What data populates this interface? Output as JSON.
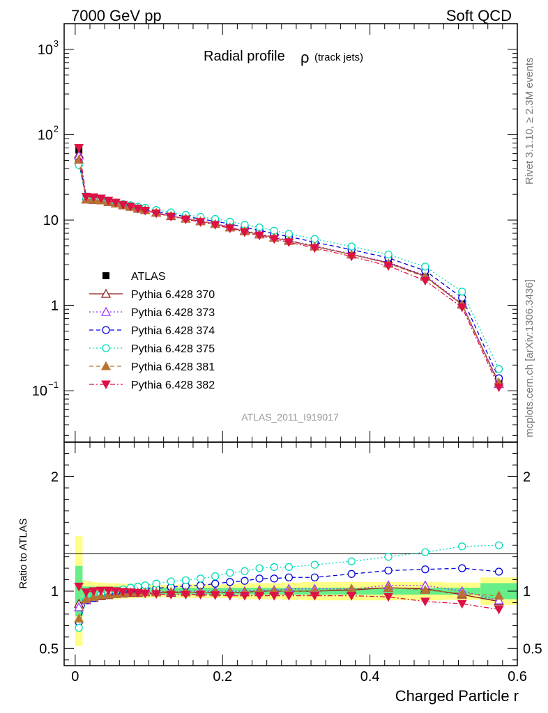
{
  "header": {
    "left": "7000 GeV pp",
    "right": "Soft QCD"
  },
  "side_labels": {
    "rivet": "Rivet 3.1.10, ≥ 2.3M events",
    "mcplots": "mcplots.cern.ch [arXiv:1306.3436]"
  },
  "chart_data": [
    {
      "type": "line",
      "title": "Radial profile",
      "title_symbol": "ρ",
      "title_suffix": "(track jets)",
      "watermark": "ATLAS_2011_I919017",
      "yscale": "log",
      "xlim": [
        -0.015,
        0.6
      ],
      "ylim": [
        0.025,
        2000
      ],
      "ytick_labels": [
        "10^-1",
        "1",
        "10",
        "10^2",
        "10^3"
      ],
      "xtick_labels": [
        "0",
        "0.2",
        "0.4",
        "0.6"
      ],
      "legend_position": "middle-left",
      "x": [
        0.005,
        0.015,
        0.025,
        0.035,
        0.045,
        0.055,
        0.065,
        0.075,
        0.085,
        0.095,
        0.11,
        0.13,
        0.15,
        0.17,
        0.19,
        0.21,
        0.23,
        0.25,
        0.27,
        0.29,
        0.325,
        0.375,
        0.425,
        0.475,
        0.525,
        0.575
      ],
      "series": [
        {
          "name": "ATLAS",
          "color": "#000000",
          "marker": "square-filled",
          "line": "none",
          "values": [
            66,
            19,
            18.5,
            17.8,
            16.8,
            16,
            15.2,
            14.5,
            13.8,
            13.2,
            12.3,
            11.3,
            10.5,
            9.8,
            9.1,
            8.3,
            7.5,
            6.8,
            6.2,
            5.7,
            4.9,
            3.9,
            3.05,
            2.15,
            1.05,
            0.13
          ]
        },
        {
          "name": "Pythia 6.428 370",
          "color": "#8b1a1a",
          "marker": "triangle-open",
          "line": "solid",
          "values": [
            59,
            17.4,
            17.2,
            17,
            16.2,
            15.6,
            14.9,
            14.3,
            13.6,
            13.1,
            12.2,
            11.1,
            10.4,
            9.7,
            9.0,
            8.2,
            7.4,
            6.8,
            6.2,
            5.7,
            4.9,
            3.95,
            3.15,
            2.2,
            1.02,
            0.12
          ]
        },
        {
          "name": "Pythia 6.428 373",
          "color": "#9b30ff",
          "marker": "triangle-open",
          "line": "dotted",
          "values": [
            57,
            17.5,
            17.3,
            17.1,
            16.3,
            15.7,
            15.0,
            14.4,
            13.7,
            13.2,
            12.3,
            11.2,
            10.5,
            9.8,
            9.1,
            8.3,
            7.5,
            6.9,
            6.3,
            5.8,
            5.0,
            4.0,
            3.2,
            2.25,
            1.05,
            0.12
          ]
        },
        {
          "name": "Pythia 6.428 374",
          "color": "#0000dd",
          "marker": "circle-open",
          "line": "dashed",
          "values": [
            48,
            17.6,
            17.4,
            17.1,
            16.4,
            15.8,
            15.2,
            14.6,
            14.0,
            13.5,
            12.6,
            11.7,
            11.0,
            10.3,
            9.7,
            9.0,
            8.2,
            7.6,
            6.9,
            6.4,
            5.5,
            4.5,
            3.6,
            2.55,
            1.23,
            0.14
          ]
        },
        {
          "name": "Pythia 6.428 375",
          "color": "#00ddbb",
          "marker": "circle-open",
          "line": "dotted",
          "values": [
            44,
            17.7,
            17.5,
            17.2,
            16.6,
            16.0,
            15.4,
            14.9,
            14.3,
            13.9,
            13.1,
            12.3,
            11.5,
            10.9,
            10.3,
            9.6,
            8.8,
            8.2,
            7.5,
            6.9,
            6.0,
            4.9,
            3.95,
            2.85,
            1.45,
            0.18
          ]
        },
        {
          "name": "Pythia 6.428 381",
          "color": "#b87333",
          "marker": "triangle-filled",
          "line": "dashed",
          "values": [
            51,
            17.5,
            17.3,
            17.0,
            16.3,
            15.6,
            15.0,
            14.3,
            13.7,
            13.1,
            12.2,
            11.2,
            10.4,
            9.7,
            9.0,
            8.2,
            7.4,
            6.8,
            6.2,
            5.7,
            4.9,
            3.95,
            3.1,
            2.15,
            1.02,
            0.125
          ]
        },
        {
          "name": "Pythia 6.428 382",
          "color": "#dd1144",
          "marker": "triangle-down-filled",
          "line": "dashdot",
          "values": [
            70,
            18.8,
            18.5,
            17.9,
            16.9,
            16.0,
            15.1,
            14.4,
            13.6,
            12.9,
            12.0,
            11.0,
            10.2,
            9.5,
            8.8,
            8.0,
            7.2,
            6.6,
            6.0,
            5.5,
            4.7,
            3.75,
            2.9,
            1.95,
            0.95,
            0.11
          ]
        }
      ]
    },
    {
      "type": "line",
      "ylabel": "Ratio to ATLAS",
      "xlabel": "Charged Particle r",
      "xlim": [
        -0.015,
        0.6
      ],
      "ylim": [
        0.35,
        2.3
      ],
      "ytick_labels": [
        "0.5",
        "1",
        "2"
      ],
      "xtick_labels": [
        "0",
        "0.2",
        "0.4",
        "0.6"
      ],
      "bands": {
        "colors": {
          "stat": "#66ee88",
          "total": "#ffff88"
        },
        "stat_halfwidth": [
          0.22,
          0.04,
          0.04,
          0.04,
          0.04,
          0.04,
          0.04,
          0.035,
          0.035,
          0.035,
          0.03,
          0.03,
          0.03,
          0.03,
          0.03,
          0.03,
          0.03,
          0.03,
          0.03,
          0.03,
          0.03,
          0.03,
          0.03,
          0.03,
          0.03,
          0.07
        ],
        "total_halfwidth": [
          0.48,
          0.09,
          0.08,
          0.075,
          0.07,
          0.07,
          0.065,
          0.065,
          0.06,
          0.06,
          0.055,
          0.055,
          0.06,
          0.06,
          0.06,
          0.06,
          0.07,
          0.07,
          0.07,
          0.075,
          0.08,
          0.08,
          0.08,
          0.08,
          0.075,
          0.12
        ]
      },
      "series": [
        {
          "name": "Pythia 6.428 370",
          "values": [
            0.89,
            0.92,
            0.94,
            0.955,
            0.965,
            0.975,
            0.98,
            0.985,
            0.985,
            0.99,
            0.99,
            0.985,
            0.99,
            0.99,
            0.99,
            0.99,
            0.99,
            1.0,
            1.0,
            1.0,
            1.0,
            1.01,
            1.03,
            1.02,
            0.97,
            0.91
          ]
        },
        {
          "name": "Pythia 6.428 373",
          "values": [
            0.86,
            0.92,
            0.945,
            0.96,
            0.97,
            0.98,
            0.985,
            0.99,
            0.99,
            0.995,
            1.0,
            0.99,
            1.0,
            1.0,
            1.0,
            1.0,
            1.0,
            1.01,
            1.01,
            1.02,
            1.02,
            1.02,
            1.05,
            1.05,
            1.0,
            0.92
          ]
        },
        {
          "name": "Pythia 6.428 374",
          "values": [
            0.73,
            0.92,
            0.94,
            0.96,
            0.975,
            0.985,
            1.0,
            1.005,
            1.01,
            1.02,
            1.025,
            1.035,
            1.045,
            1.05,
            1.065,
            1.08,
            1.09,
            1.11,
            1.11,
            1.12,
            1.12,
            1.15,
            1.18,
            1.19,
            1.2,
            1.17
          ]
        },
        {
          "name": "Pythia 6.428 375",
          "values": [
            0.68,
            0.93,
            0.95,
            0.97,
            0.99,
            1.0,
            1.015,
            1.03,
            1.04,
            1.05,
            1.065,
            1.085,
            1.095,
            1.11,
            1.13,
            1.16,
            1.175,
            1.2,
            1.21,
            1.21,
            1.23,
            1.26,
            1.3,
            1.34,
            1.39,
            1.4
          ]
        },
        {
          "name": "Pythia 6.428 381",
          "values": [
            0.76,
            0.93,
            0.95,
            0.96,
            0.97,
            0.975,
            0.985,
            0.99,
            0.99,
            0.99,
            0.99,
            0.995,
            0.99,
            0.99,
            0.99,
            0.99,
            0.99,
            1.0,
            1.0,
            1.0,
            1.0,
            1.02,
            1.03,
            1.01,
            0.98,
            0.96
          ]
        },
        {
          "name": "Pythia 6.428 382",
          "values": [
            1.04,
            0.99,
            1.0,
            1.005,
            1.005,
            1.0,
            0.995,
            0.99,
            0.985,
            0.98,
            0.975,
            0.97,
            0.97,
            0.97,
            0.965,
            0.96,
            0.96,
            0.96,
            0.96,
            0.96,
            0.96,
            0.96,
            0.95,
            0.91,
            0.89,
            0.84
          ]
        }
      ]
    }
  ]
}
